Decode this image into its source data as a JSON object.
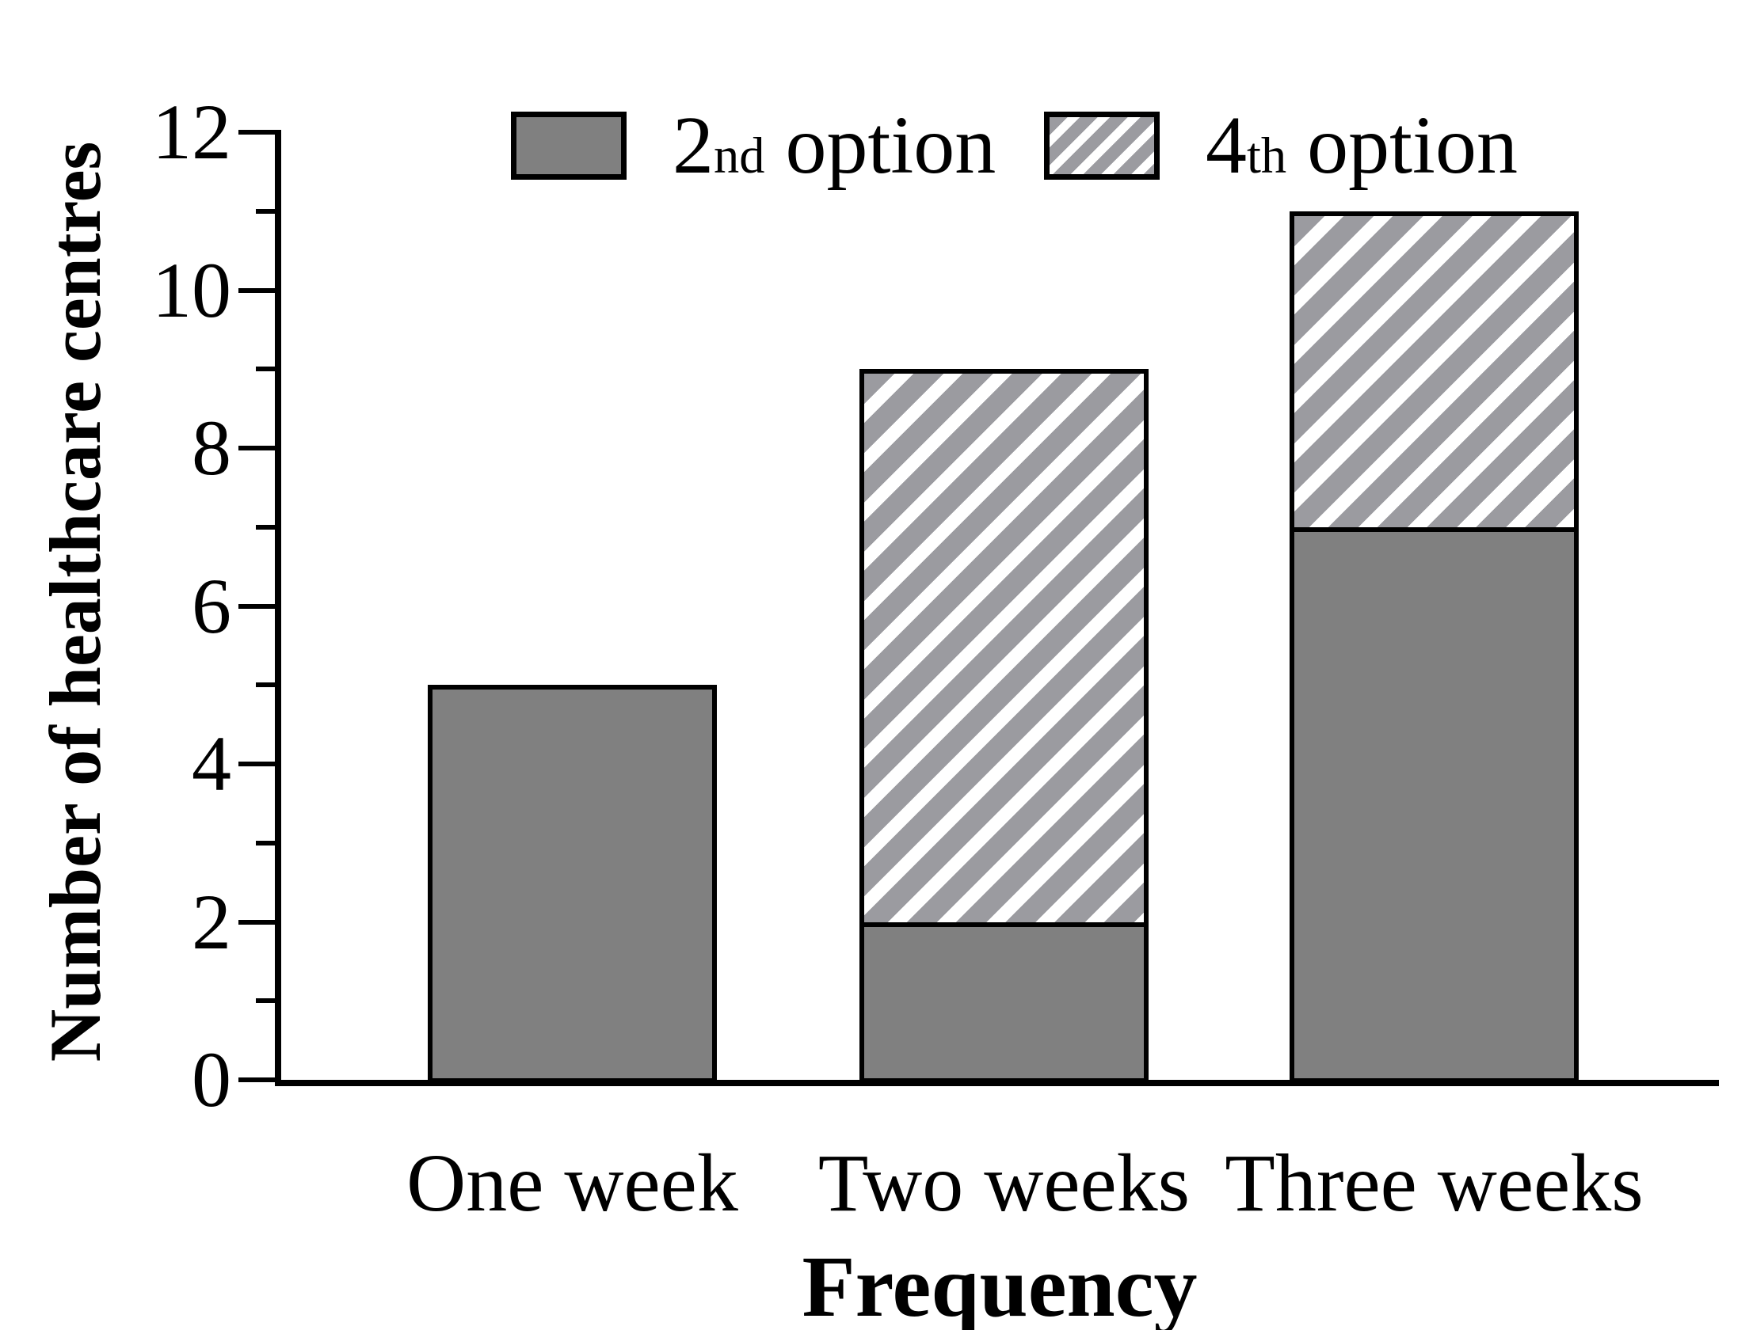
{
  "chart_data": {
    "type": "bar",
    "stacked": true,
    "title": "",
    "xlabel": "Frequency",
    "ylabel": "Number of healthcare centres",
    "categories": [
      "One week",
      "Two weeks",
      "Three weeks"
    ],
    "series": [
      {
        "name": "2nd option",
        "pattern": "solid",
        "color": "#808080",
        "values": [
          5,
          2,
          7
        ]
      },
      {
        "name": "4th option",
        "pattern": "diagonal-hatch",
        "hatch_color": "#9b9ba0",
        "hatch_bg": "#ffffff",
        "values": [
          0,
          7,
          4
        ]
      }
    ],
    "stack_totals": [
      5,
      9,
      11
    ],
    "ylim": [
      0,
      12
    ],
    "yticks": [
      0,
      2,
      4,
      6,
      8,
      10,
      12
    ],
    "yticks_minor": [
      1,
      3,
      5,
      7,
      9,
      11
    ],
    "grid": false,
    "legend_position": "top"
  },
  "legend": {
    "items": [
      {
        "base": "2",
        "sup": "nd",
        "rest": " option",
        "swatch": "solid-gray"
      },
      {
        "base": "4",
        "sup": "th",
        "rest": " option",
        "swatch": "hatched"
      }
    ]
  },
  "colors": {
    "axis": "#000000",
    "text": "#000000",
    "solid_fill": "#808080",
    "hatch_stripe": "#9b9ba0",
    "hatch_background": "#ffffff",
    "background": "#ffffff"
  }
}
